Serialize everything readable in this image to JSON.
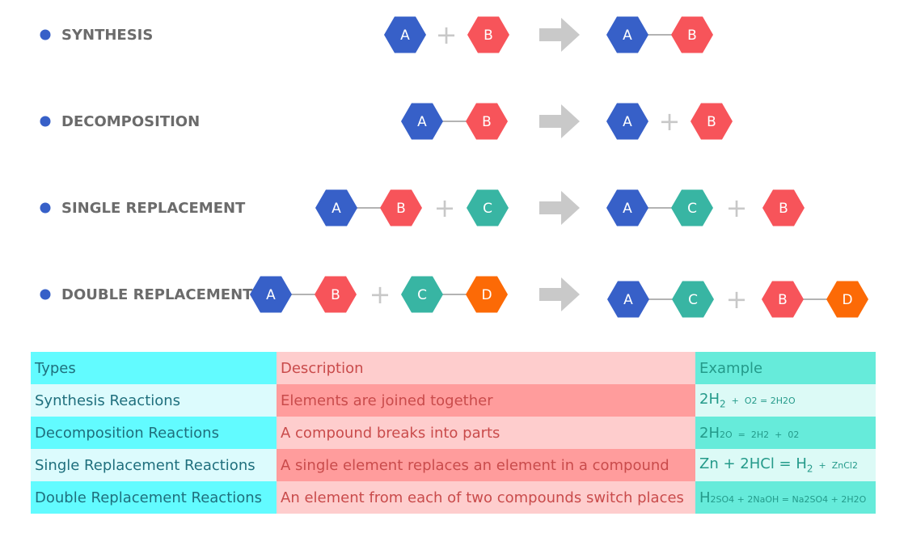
{
  "colors": {
    "A": "#3760c8",
    "B": "#f7545a",
    "C": "#38b5a3",
    "D": "#fc6a06",
    "bullet": "#3760c8",
    "connector": "#9a9a9a",
    "arrow": "#c9c9c9",
    "plus": "#c8c8c8"
  },
  "reactions": [
    {
      "title": "SYNTHESIS",
      "reactants": [
        [
          "A"
        ],
        [
          "B"
        ]
      ],
      "products": [
        [
          "A",
          "B"
        ]
      ]
    },
    {
      "title": "DECOMPOSITION",
      "reactants": [
        [
          "A",
          "B"
        ]
      ],
      "products": [
        [
          "A"
        ],
        [
          "B"
        ]
      ]
    },
    {
      "title": "SINGLE REPLACEMENT",
      "reactants": [
        [
          "A",
          "B"
        ],
        [
          "C"
        ]
      ],
      "products": [
        [
          "A",
          "C"
        ],
        [
          "B"
        ]
      ]
    },
    {
      "title": "DOUBLE REPLACEMENT",
      "reactants": [
        [
          "A",
          "B"
        ],
        [
          "C",
          "D"
        ]
      ],
      "products": [
        [
          "A",
          "C"
        ],
        [
          "B",
          "D"
        ]
      ]
    }
  ],
  "plus_sign": "+",
  "table": {
    "headers": [
      "Types",
      "Description",
      "Example"
    ],
    "rows": [
      {
        "type": "Synthesis Reactions",
        "description": "Elements are joined together",
        "example": [
          {
            "t": "2H",
            "size": "big"
          },
          {
            "t": "2",
            "size": "sub"
          },
          {
            "t": "  +  ",
            "size": "sm"
          },
          {
            "t": "O2 = 2H2O",
            "size": "sm"
          }
        ]
      },
      {
        "type": "Decomposition Reactions",
        "description": "A compound breaks into parts",
        "example": [
          {
            "t": "2H",
            "size": "big"
          },
          {
            "t": "2O",
            "size": "sm"
          },
          {
            "t": "  =  2H2  +  02",
            "size": "sm"
          }
        ]
      },
      {
        "type": "Single Replacement Reactions",
        "description": "A single element replaces an element in a compound",
        "example": [
          {
            "t": "Zn + 2HCl = H",
            "size": "big"
          },
          {
            "t": "2",
            "size": "sub"
          },
          {
            "t": "  +  ZnCl2",
            "size": "sm"
          }
        ]
      },
      {
        "type": "Double Replacement Reactions",
        "description": "An element from each of two compounds switch places",
        "example": [
          {
            "t": "H",
            "size": "big"
          },
          {
            "t": "2SO4 + 2NaOH = Na2SO4 + 2H2O",
            "size": "sm"
          }
        ]
      }
    ]
  }
}
